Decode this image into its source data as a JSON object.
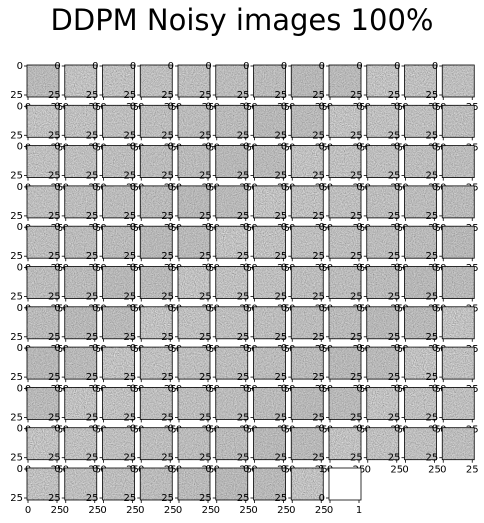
{
  "figure": {
    "title": "DDPM Noisy images 100%"
  },
  "chart_data": {
    "type": "heatmap",
    "title": "DDPM Noisy images 100%",
    "colormap": "gray",
    "grid": {
      "rows": 11,
      "cols": 12,
      "image_panels": 128,
      "empty_panels": 1
    },
    "image_size": [
      28,
      28
    ],
    "panel_axis_ticks": {
      "x_ticks": [
        0,
        25
      ],
      "y_ticks": [
        0,
        25
      ]
    },
    "empty_panel_axis": {
      "xlim": [
        0,
        1
      ],
      "ylim": [
        0,
        1
      ],
      "x_ticks": [
        0,
        1
      ],
      "y_ticks": [
        0,
        1
      ]
    },
    "tick_labels": {
      "zero": "0",
      "twentyfive": "25",
      "one": "1"
    }
  }
}
